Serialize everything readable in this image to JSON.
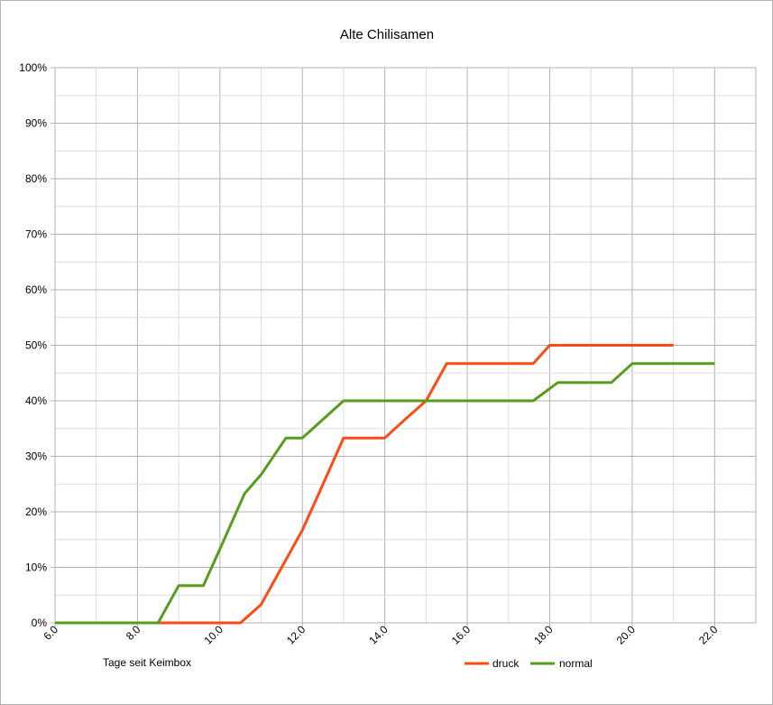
{
  "chart_data": {
    "type": "line",
    "title": "Alte Chilisamen",
    "xlabel": "Tage seit Keimbox",
    "ylabel": "",
    "xlim": [
      6.0,
      23.0
    ],
    "ylim": [
      0,
      1
    ],
    "x_ticks": [
      "6.0",
      "8.0",
      "10.0",
      "12.0",
      "14.0",
      "16.0",
      "18.0",
      "20.0",
      "22.0"
    ],
    "y_ticks": [
      "0%",
      "10%",
      "20%",
      "30%",
      "40%",
      "50%",
      "60%",
      "70%",
      "80%",
      "90%",
      "100%"
    ],
    "grid": true,
    "legend_position": "bottom",
    "series": [
      {
        "name": "druck",
        "color": "#ff4a14",
        "x": [
          6.0,
          10.5,
          11.0,
          12.0,
          12.4,
          13.0,
          14.0,
          14.5,
          15.0,
          15.5,
          17.6,
          18.0,
          21.0
        ],
        "y": [
          0,
          0,
          0.033,
          0.167,
          0.233,
          0.333,
          0.333,
          0.367,
          0.4,
          0.467,
          0.467,
          0.5,
          0.5
        ]
      },
      {
        "name": "normal",
        "color": "#579d1c",
        "x": [
          6.0,
          8.5,
          9.0,
          9.6,
          10.0,
          10.6,
          11.0,
          11.6,
          12.0,
          13.0,
          17.6,
          18.2,
          19.5,
          20.0,
          22.0
        ],
        "y": [
          0,
          0,
          0.067,
          0.067,
          0.133,
          0.233,
          0.267,
          0.333,
          0.333,
          0.4,
          0.4,
          0.433,
          0.433,
          0.467,
          0.467
        ]
      }
    ]
  }
}
